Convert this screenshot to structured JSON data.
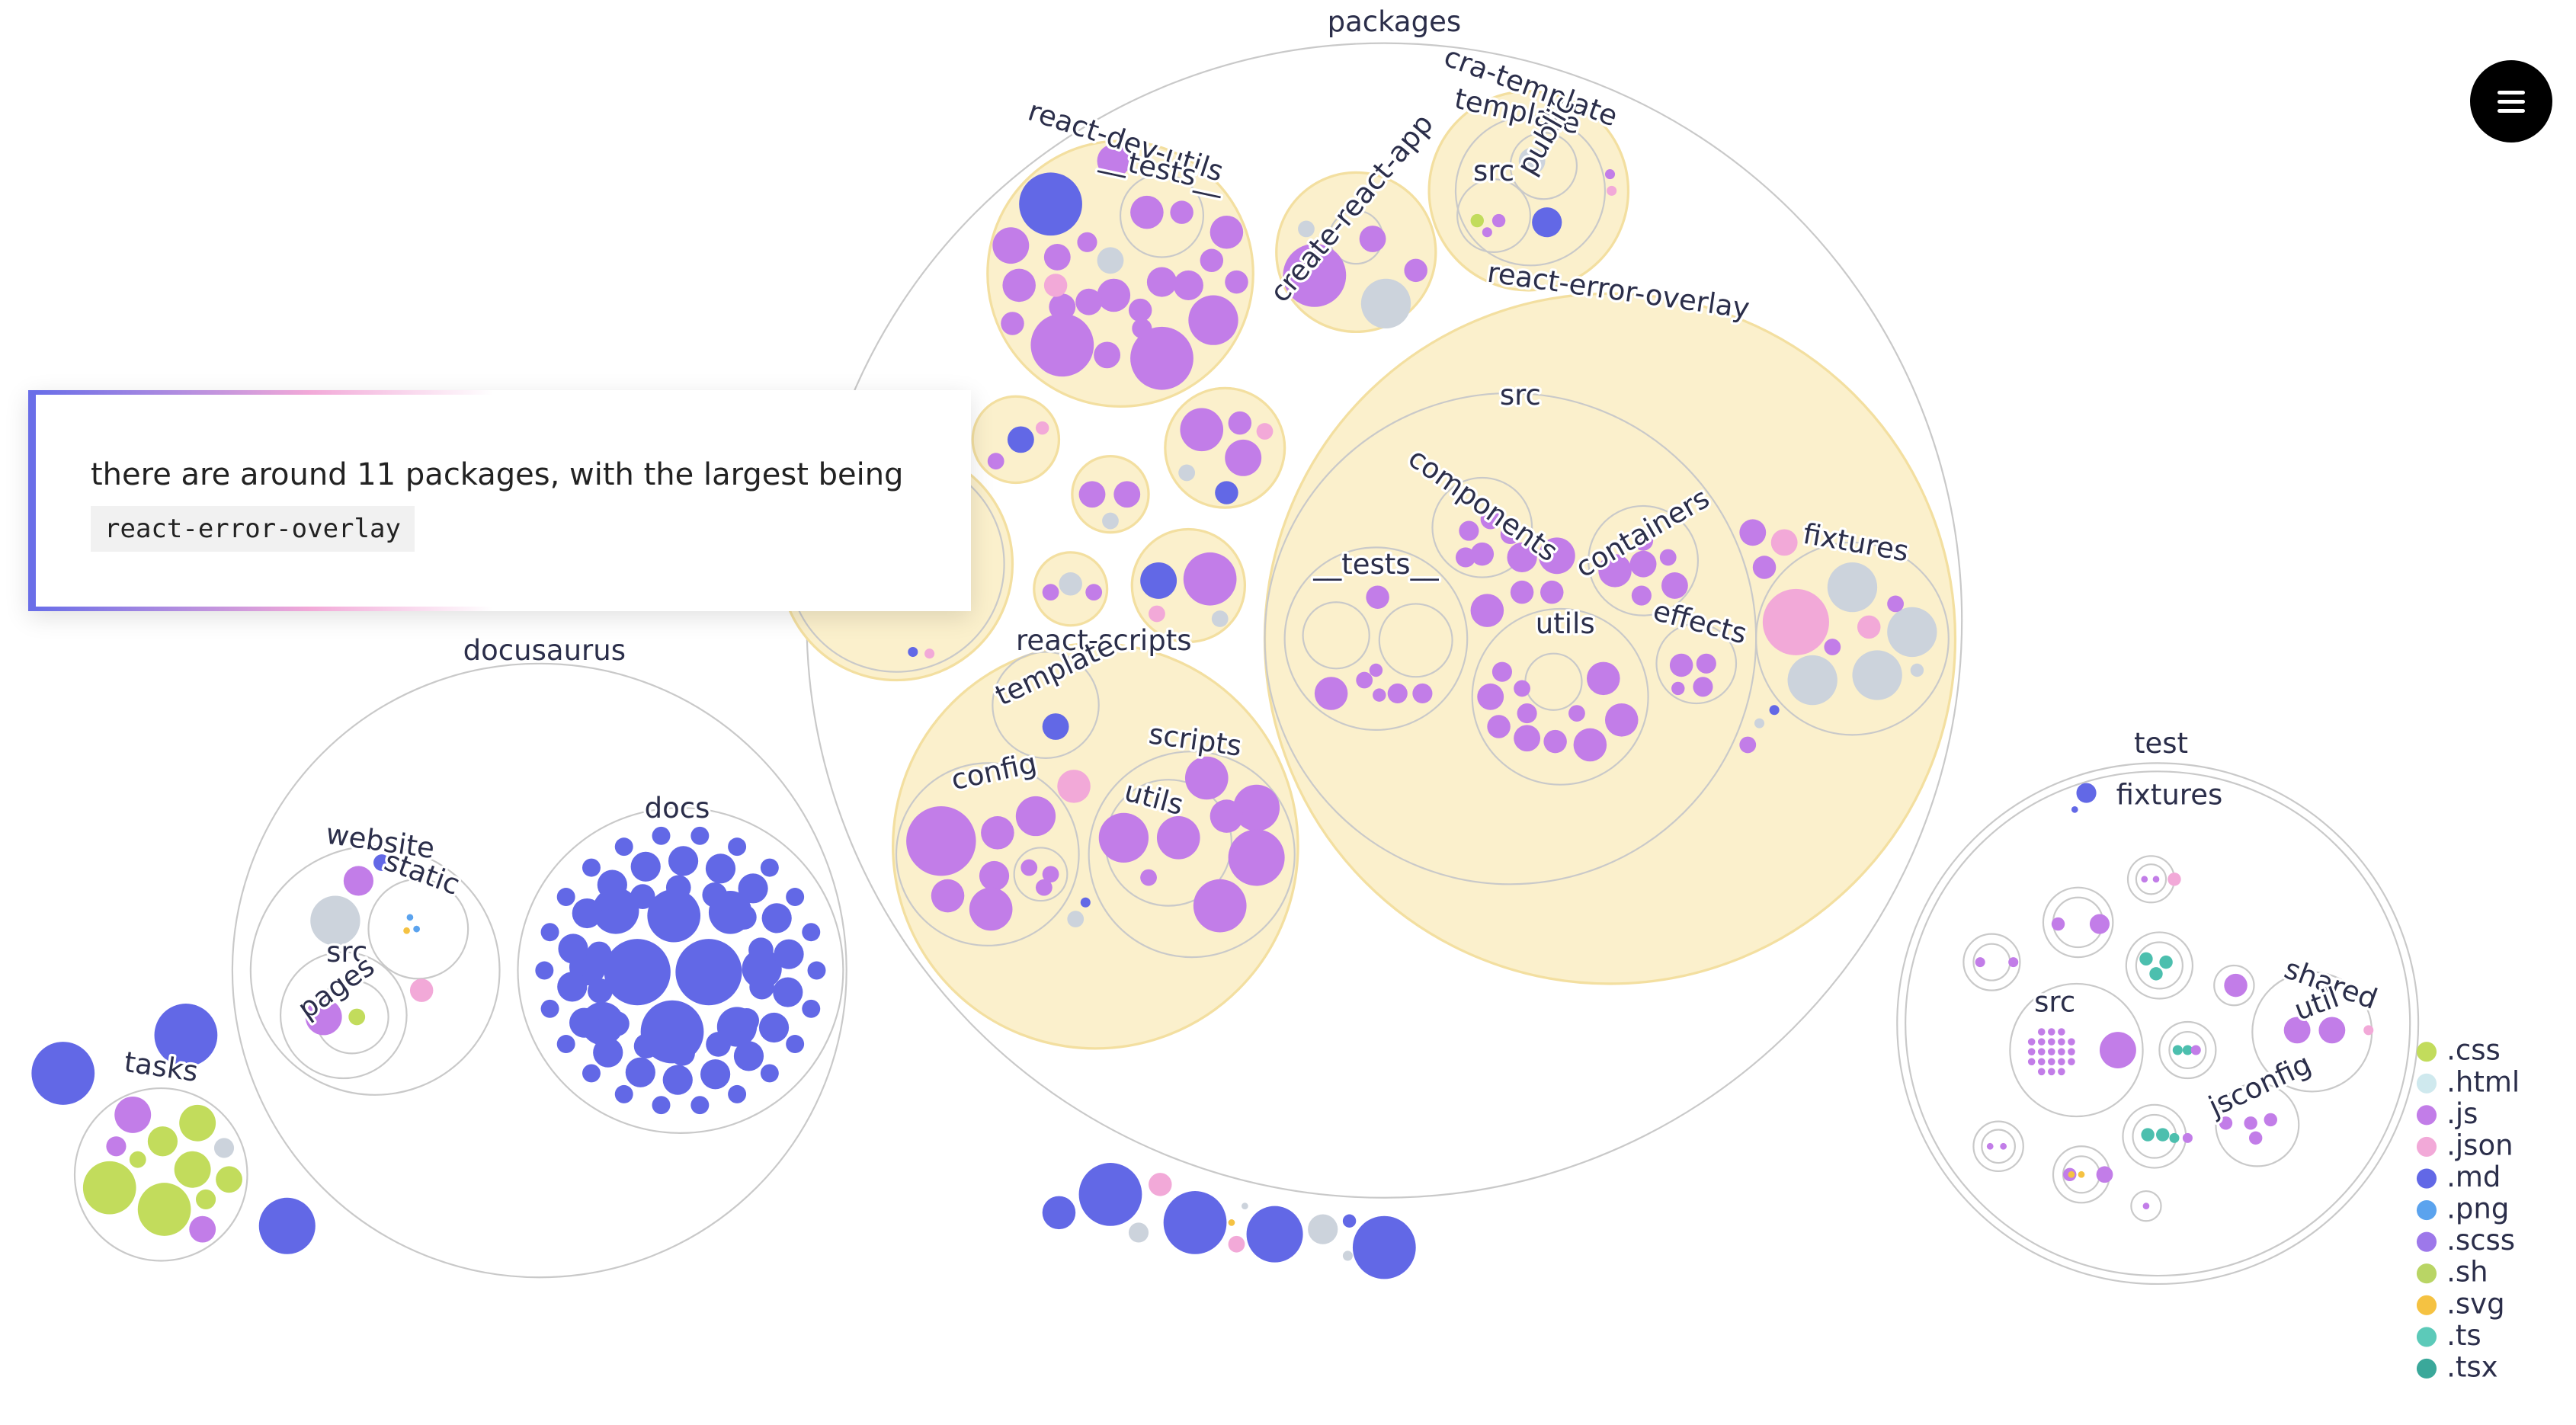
{
  "labels": [
    {
      "label": "packages"
    },
    {
      "label": "cra-template"
    },
    {
      "label": "template"
    },
    {
      "label": "public"
    },
    {
      "label": "src"
    },
    {
      "label": "react-dev-utils"
    },
    {
      "label": "__tests__"
    },
    {
      "label": "create-react-app"
    },
    {
      "label": "react-error-overlay"
    },
    {
      "label": "src"
    },
    {
      "label": "components"
    },
    {
      "label": "containers"
    },
    {
      "label": "__tests__"
    },
    {
      "label": "fixtures"
    },
    {
      "label": "utils"
    },
    {
      "label": "effects"
    },
    {
      "label": "react-scripts"
    },
    {
      "label": "template"
    },
    {
      "label": "scripts"
    },
    {
      "label": "config"
    },
    {
      "label": "utils"
    },
    {
      "label": "docusaurus"
    },
    {
      "label": "website"
    },
    {
      "label": "static"
    },
    {
      "label": "docs"
    },
    {
      "label": "src"
    },
    {
      "label": "pages"
    },
    {
      "label": "tasks"
    },
    {
      "label": "test"
    },
    {
      "label": "fixtures"
    },
    {
      "label": "src"
    },
    {
      "label": "shared"
    },
    {
      "label": "util"
    },
    {
      "label": "jsconfig"
    }
  ],
  "tooltip": {
    "text": "there are around 11 packages, with the largest being",
    "code": "react-error-overlay"
  },
  "legend": [
    {
      "label": ".css",
      "color": "#c2dc5c"
    },
    {
      "label": ".html",
      "color": "#cfe9ee"
    },
    {
      "label": ".js",
      "color": "#c27de8"
    },
    {
      "label": ".json",
      "color": "#f2a9d8"
    },
    {
      "label": ".md",
      "color": "#6268e6"
    },
    {
      "label": ".png",
      "color": "#5ba3ee"
    },
    {
      "label": ".scss",
      "color": "#9d78ea"
    },
    {
      "label": ".sh",
      "color": "#b9d565"
    },
    {
      "label": ".svg",
      "color": "#f5c242"
    },
    {
      "label": ".ts",
      "color": "#5ccab9"
    },
    {
      "label": ".tsx",
      "color": "#3aa89a"
    }
  ]
}
